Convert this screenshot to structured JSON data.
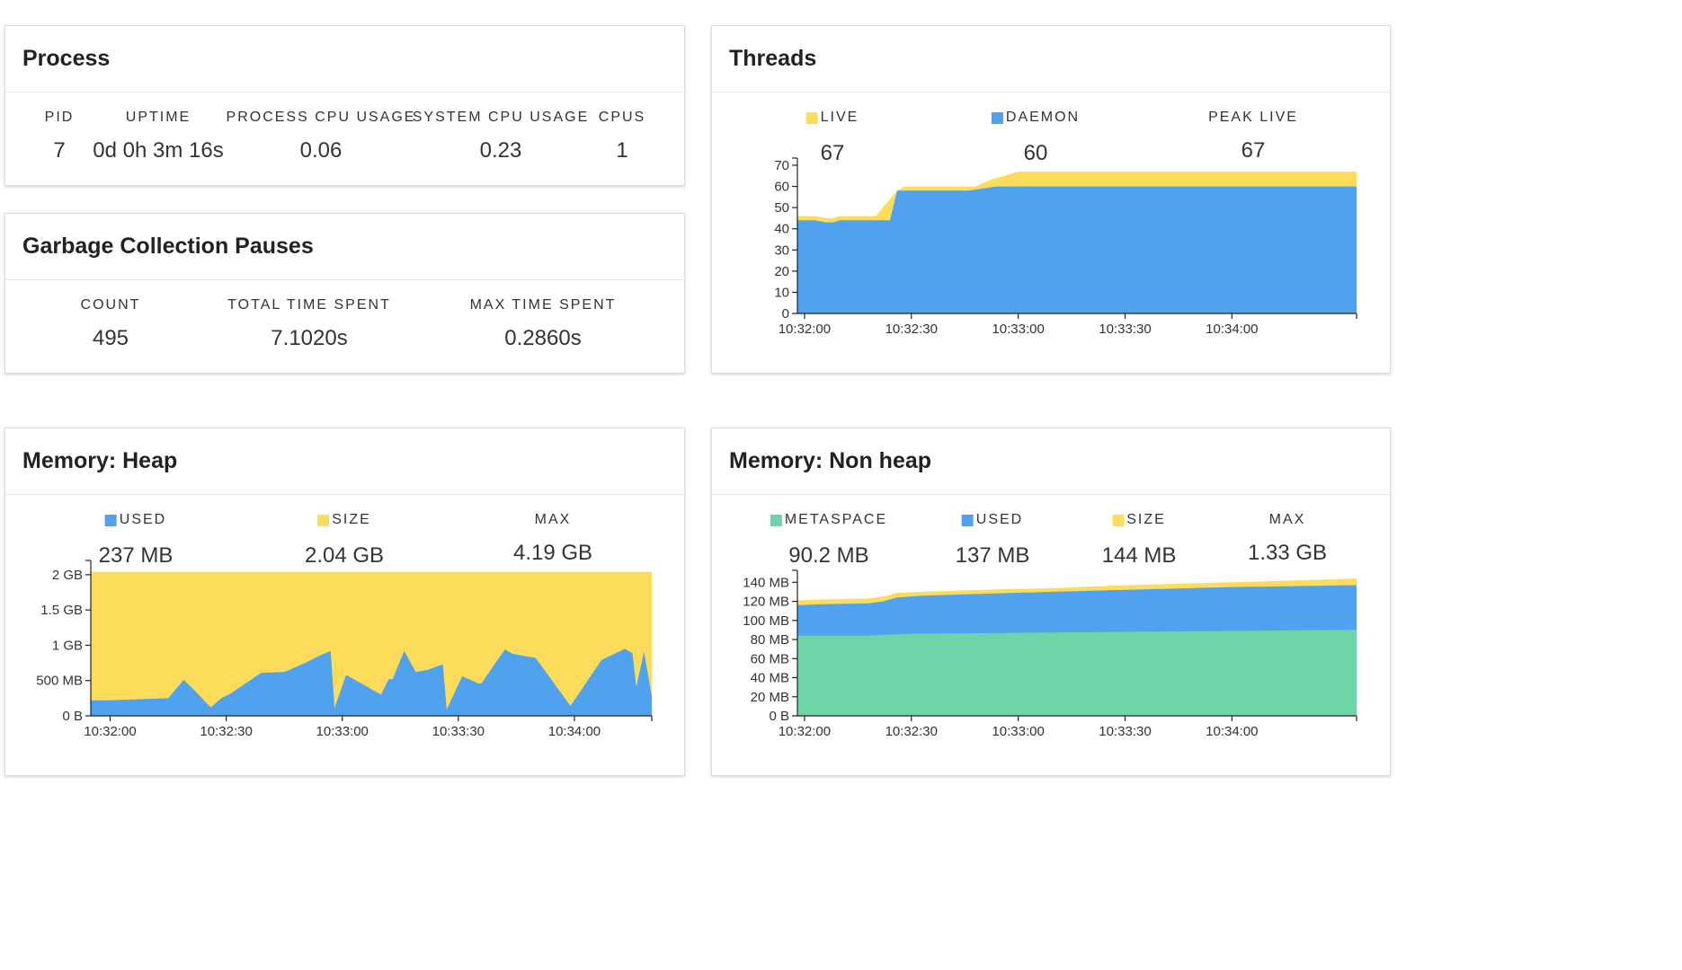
{
  "colors": {
    "yellow": "#fddc5c",
    "blue": "#50a2ee",
    "green": "#6dd5a8",
    "axis": "#222222",
    "text": "#333333"
  },
  "process": {
    "title": "Process",
    "stats": [
      {
        "label": "PID",
        "value": "7"
      },
      {
        "label": "UPTIME",
        "value": "0d 0h 3m 16s"
      },
      {
        "label": "PROCESS CPU USAGE",
        "value": "0.06"
      },
      {
        "label": "SYSTEM CPU USAGE",
        "value": "0.23"
      },
      {
        "label": "CPUS",
        "value": "1"
      }
    ]
  },
  "gc": {
    "title": "Garbage Collection Pauses",
    "stats": [
      {
        "label": "COUNT",
        "value": "495"
      },
      {
        "label": "TOTAL TIME SPENT",
        "value": "7.1020s"
      },
      {
        "label": "MAX TIME SPENT",
        "value": "0.2860s"
      }
    ]
  },
  "threads": {
    "title": "Threads",
    "stats": [
      {
        "label": "LIVE",
        "value": "67",
        "color": "yellow"
      },
      {
        "label": "DAEMON",
        "value": "60",
        "color": "blue"
      },
      {
        "label": "PEAK LIVE",
        "value": "67"
      }
    ]
  },
  "heap": {
    "title": "Memory: Heap",
    "stats": [
      {
        "label": "USED",
        "value": "237 MB",
        "color": "blue"
      },
      {
        "label": "SIZE",
        "value": "2.04 GB",
        "color": "yellow"
      },
      {
        "label": "MAX",
        "value": "4.19 GB"
      }
    ]
  },
  "nonheap": {
    "title": "Memory: Non heap",
    "stats": [
      {
        "label": "METASPACE",
        "value": "90.2 MB",
        "color": "green"
      },
      {
        "label": "USED",
        "value": "137 MB",
        "color": "blue"
      },
      {
        "label": "SIZE",
        "value": "144 MB",
        "color": "yellow"
      },
      {
        "label": "MAX",
        "value": "1.33 GB"
      }
    ]
  },
  "chart_data": [
    {
      "id": "threads",
      "type": "area",
      "ylim": [
        0,
        70
      ],
      "yticks": [
        0,
        10,
        20,
        30,
        40,
        50,
        60,
        70
      ],
      "ytick_labels": [
        "0",
        "10",
        "20",
        "30",
        "40",
        "50",
        "60",
        "70"
      ],
      "xlim": [
        "10:31:58",
        "10:34:35"
      ],
      "xticks": [
        "10:32:00",
        "10:32:30",
        "10:33:00",
        "10:33:30",
        "10:34:00"
      ],
      "series": [
        {
          "name": "LIVE",
          "color": "yellow",
          "x": [
            "10:31:58",
            "10:32:03",
            "10:32:06",
            "10:32:08",
            "10:32:10",
            "10:32:13",
            "10:32:20",
            "10:32:23",
            "10:32:26",
            "10:32:28",
            "10:32:40",
            "10:32:44",
            "10:32:48",
            "10:32:52",
            "10:32:56",
            "10:33:00",
            "10:34:35"
          ],
          "values": [
            46,
            46,
            45,
            45,
            46,
            46,
            46,
            52,
            58,
            60,
            60,
            60,
            60,
            63,
            65,
            67,
            67
          ]
        },
        {
          "name": "DAEMON",
          "color": "blue",
          "x": [
            "10:31:58",
            "10:32:03",
            "10:32:06",
            "10:32:08",
            "10:32:10",
            "10:32:13",
            "10:32:24",
            "10:32:26",
            "10:32:46",
            "10:32:50",
            "10:32:54",
            "10:32:56",
            "10:34:35"
          ],
          "values": [
            44,
            44,
            43,
            43,
            44,
            44,
            44,
            58,
            58,
            59,
            60,
            60,
            60
          ]
        }
      ]
    },
    {
      "id": "heap",
      "type": "area",
      "ylim": [
        0,
        2.1
      ],
      "yticks": [
        0,
        0.5,
        1,
        1.5,
        2
      ],
      "ytick_labels": [
        "0 B",
        "500 MB",
        "1 GB",
        "1.5 GB",
        "2 GB"
      ],
      "xlim": [
        "10:31:55",
        "10:34:20"
      ],
      "xticks": [
        "10:32:00",
        "10:32:30",
        "10:33:00",
        "10:33:30",
        "10:34:00"
      ],
      "series": [
        {
          "name": "SIZE",
          "color": "yellow",
          "x": [
            "10:31:55",
            "10:34:20"
          ],
          "values": [
            2.04,
            2.04
          ]
        },
        {
          "name": "USED",
          "color": "blue",
          "x": [
            "10:31:55",
            "10:32:00",
            "10:32:05",
            "10:32:10",
            "10:32:15",
            "10:32:19",
            "10:32:22",
            "10:32:26",
            "10:32:29",
            "10:32:31",
            "10:32:39",
            "10:32:45",
            "10:32:50",
            "10:32:54",
            "10:32:57",
            "10:32:58",
            "10:33:01",
            "10:33:10",
            "10:33:12",
            "10:33:13",
            "10:33:16",
            "10:33:19",
            "10:33:22",
            "10:33:24",
            "10:33:25",
            "10:33:26",
            "10:33:27",
            "10:33:31",
            "10:33:34",
            "10:33:35",
            "10:33:36",
            "10:33:42",
            "10:33:44",
            "10:33:50",
            "10:33:59",
            "10:34:07",
            "10:34:13",
            "10:34:15",
            "10:34:16",
            "10:34:18",
            "10:34:20"
          ],
          "values": [
            0.22,
            0.22,
            0.23,
            0.24,
            0.25,
            0.51,
            0.35,
            0.12,
            0.26,
            0.31,
            0.61,
            0.62,
            0.74,
            0.85,
            0.92,
            0.11,
            0.58,
            0.3,
            0.52,
            0.52,
            0.92,
            0.62,
            0.65,
            0.69,
            0.71,
            0.73,
            0.09,
            0.56,
            0.49,
            0.46,
            0.46,
            0.94,
            0.88,
            0.82,
            0.14,
            0.79,
            0.95,
            0.89,
            0.41,
            0.91,
            0.28
          ]
        }
      ]
    },
    {
      "id": "nonheap",
      "type": "area",
      "ylim": [
        0,
        145
      ],
      "yticks": [
        0,
        20,
        40,
        60,
        80,
        100,
        120,
        140
      ],
      "ytick_labels": [
        "0 B",
        "20 MB",
        "40 MB",
        "60 MB",
        "80 MB",
        "100 MB",
        "120 MB",
        "140 MB"
      ],
      "xlim": [
        "10:31:58",
        "10:34:35"
      ],
      "xticks": [
        "10:32:00",
        "10:32:30",
        "10:33:00",
        "10:33:30",
        "10:34:00"
      ],
      "series": [
        {
          "name": "SIZE",
          "color": "yellow",
          "x": [
            "10:31:58",
            "10:32:05",
            "10:32:18",
            "10:32:22",
            "10:32:26",
            "10:32:33",
            "10:32:50",
            "10:33:10",
            "10:33:30",
            "10:34:00",
            "10:34:35"
          ],
          "values": [
            121,
            122,
            123,
            125,
            129,
            130,
            132,
            134,
            137,
            140,
            144
          ]
        },
        {
          "name": "USED",
          "color": "blue",
          "x": [
            "10:31:58",
            "10:32:05",
            "10:32:18",
            "10:32:22",
            "10:32:26",
            "10:32:33",
            "10:32:50",
            "10:33:10",
            "10:33:30",
            "10:34:00",
            "10:34:35"
          ],
          "values": [
            116,
            117,
            118,
            120,
            124,
            126,
            128,
            130,
            132,
            135,
            137
          ]
        },
        {
          "name": "METASPACE",
          "color": "green",
          "x": [
            "10:31:58",
            "10:32:18",
            "10:32:22",
            "10:32:30",
            "10:33:00",
            "10:33:30",
            "10:34:00",
            "10:34:35"
          ],
          "values": [
            84,
            84,
            85,
            86,
            87,
            88,
            89,
            90.2
          ]
        }
      ]
    }
  ]
}
